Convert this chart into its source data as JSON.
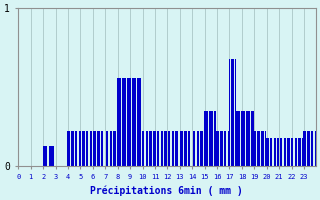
{
  "xlabel": "Précipitations 6min ( mm )",
  "ylabel": "",
  "background_color": "#d8f4f4",
  "bar_color": "#0000cc",
  "grid_color": "#b0cccc",
  "axis_color": "#909090",
  "text_color": "#0000cc",
  "ylim": [
    0,
    1.0
  ],
  "yticks": [
    0,
    1
  ],
  "num_slots": 240,
  "slot_values": [
    0,
    0,
    0,
    0,
    0,
    0,
    0,
    0,
    0,
    0,
    0,
    0,
    0,
    0,
    0,
    0,
    0,
    0,
    0,
    0,
    0.13,
    0.13,
    0.13,
    0.13,
    0,
    0.13,
    0.13,
    0.13,
    0.13,
    0,
    0,
    0,
    0,
    0,
    0,
    0,
    0,
    0,
    0,
    0,
    0.22,
    0.22,
    0,
    0.22,
    0.22,
    0,
    0.22,
    0.22,
    0,
    0.22,
    0.22,
    0,
    0.22,
    0.22,
    0,
    0.22,
    0.22,
    0,
    0.22,
    0.22,
    0,
    0.22,
    0.22,
    0,
    0.22,
    0.22,
    0,
    0.22,
    0.22,
    0,
    0,
    0.22,
    0.22,
    0,
    0.22,
    0.22,
    0,
    0.22,
    0.22,
    0,
    0.56,
    0.56,
    0.56,
    0,
    0.56,
    0.56,
    0.56,
    0,
    0.56,
    0.56,
    0.56,
    0,
    0.56,
    0.56,
    0.56,
    0,
    0.56,
    0.56,
    0.56,
    0,
    0.22,
    0.22,
    0,
    0.22,
    0.22,
    0,
    0.22,
    0.22,
    0,
    0.22,
    0.22,
    0,
    0.22,
    0.22,
    0,
    0.22,
    0.22,
    0,
    0.22,
    0.22,
    0,
    0.22,
    0.22,
    0,
    0.22,
    0.22,
    0,
    0.22,
    0.22,
    0,
    0,
    0.22,
    0.22,
    0,
    0.22,
    0.22,
    0,
    0.22,
    0.22,
    0,
    0,
    0.22,
    0.22,
    0,
    0.22,
    0.22,
    0,
    0.22,
    0.22,
    0,
    0.35,
    0.35,
    0.35,
    0,
    0.35,
    0.35,
    0.35,
    0,
    0.35,
    0.35,
    0.22,
    0.22,
    0,
    0.22,
    0.22,
    0,
    0.22,
    0.22,
    0,
    0.22,
    0.68,
    0,
    0.68,
    0.68,
    0,
    0.68,
    0.35,
    0.35,
    0.35,
    0,
    0.35,
    0.35,
    0.35,
    0,
    0.35,
    0.35,
    0.35,
    0,
    0.35,
    0.35,
    0.22,
    0.22,
    0,
    0.22,
    0.22,
    0,
    0.22,
    0.22,
    0,
    0.22,
    0.18,
    0.18,
    0,
    0.18,
    0.18,
    0,
    0.18,
    0.18,
    0,
    0.18,
    0,
    0.18,
    0.18,
    0,
    0.18,
    0.18,
    0,
    0.18,
    0.18,
    0,
    0.18,
    0.18,
    0,
    0.18,
    0.18,
    0,
    0.18,
    0.18,
    0,
    0.18,
    0.22,
    0.22,
    0,
    0.22,
    0.22,
    0,
    0.22,
    0.22,
    0,
    0.22
  ]
}
